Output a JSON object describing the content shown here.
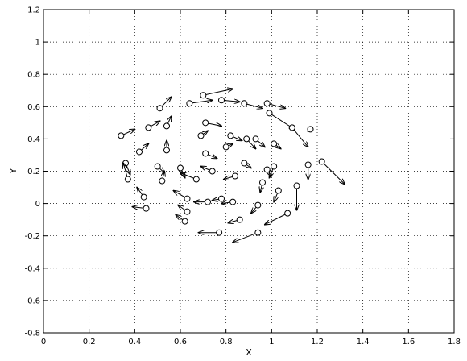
{
  "chart_data": {
    "type": "quiver",
    "xlabel": "X",
    "ylabel": "Y",
    "xlim": [
      0,
      1.8
    ],
    "ylim": [
      -0.8,
      1.2
    ],
    "x_ticks": [
      "0",
      "0.2",
      "0.4",
      "0.6",
      "0.8",
      "1",
      "1.2",
      "1.4",
      "1.6",
      "1.8"
    ],
    "y_ticks": [
      "1.2",
      "1",
      "0.8",
      "0.6",
      "0.4",
      "0.2",
      "0",
      "-0.2",
      "-0.4",
      "-0.6",
      "-0.8"
    ],
    "grid": true,
    "marker": "circle",
    "color": "#000000",
    "points": [
      {
        "x": 0.34,
        "y": 0.42,
        "u": 0.06,
        "v": 0.04
      },
      {
        "x": 0.36,
        "y": 0.25,
        "u": 0.02,
        "v": -0.07
      },
      {
        "x": 0.37,
        "y": 0.15,
        "u": -0.02,
        "v": 0.1
      },
      {
        "x": 0.42,
        "y": 0.32,
        "u": 0.04,
        "v": 0.05
      },
      {
        "x": 0.44,
        "y": 0.04,
        "u": -0.03,
        "v": 0.06
      },
      {
        "x": 0.45,
        "y": -0.03,
        "u": -0.06,
        "v": 0.01
      },
      {
        "x": 0.46,
        "y": 0.47,
        "u": 0.05,
        "v": 0.04
      },
      {
        "x": 0.5,
        "y": 0.23,
        "u": 0.03,
        "v": -0.04
      },
      {
        "x": 0.51,
        "y": 0.59,
        "u": 0.05,
        "v": 0.07
      },
      {
        "x": 0.52,
        "y": 0.14,
        "u": 0.01,
        "v": 0.06
      },
      {
        "x": 0.54,
        "y": 0.48,
        "u": 0.02,
        "v": 0.06
      },
      {
        "x": 0.54,
        "y": 0.33,
        "u": 0.0,
        "v": 0.06
      },
      {
        "x": 0.6,
        "y": 0.22,
        "u": 0.02,
        "v": -0.06
      },
      {
        "x": 0.62,
        "y": -0.11,
        "u": -0.04,
        "v": 0.04
      },
      {
        "x": 0.63,
        "y": -0.05,
        "u": -0.04,
        "v": 0.04
      },
      {
        "x": 0.64,
        "y": 0.62,
        "u": 0.1,
        "v": 0.02
      },
      {
        "x": 0.63,
        "y": 0.03,
        "u": -0.06,
        "v": 0.05
      },
      {
        "x": 0.67,
        "y": 0.15,
        "u": -0.07,
        "v": 0.04
      },
      {
        "x": 0.69,
        "y": 0.42,
        "u": 0.03,
        "v": 0.03
      },
      {
        "x": 0.7,
        "y": 0.67,
        "u": 0.13,
        "v": 0.04
      },
      {
        "x": 0.71,
        "y": 0.5,
        "u": 0.07,
        "v": -0.02
      },
      {
        "x": 0.71,
        "y": 0.31,
        "u": 0.05,
        "v": -0.03
      },
      {
        "x": 0.72,
        "y": 0.01,
        "u": -0.06,
        "v": 0.0
      },
      {
        "x": 0.74,
        "y": 0.2,
        "u": -0.05,
        "v": 0.03
      },
      {
        "x": 0.78,
        "y": 0.64,
        "u": 0.08,
        "v": -0.01
      },
      {
        "x": 0.77,
        "y": -0.18,
        "u": -0.09,
        "v": 0.0
      },
      {
        "x": 0.78,
        "y": 0.03,
        "u": -0.04,
        "v": -0.01
      },
      {
        "x": 0.8,
        "y": 0.35,
        "u": 0.03,
        "v": 0.02
      },
      {
        "x": 0.82,
        "y": 0.42,
        "u": 0.05,
        "v": -0.03
      },
      {
        "x": 0.83,
        "y": 0.01,
        "u": -0.05,
        "v": -0.01
      },
      {
        "x": 0.84,
        "y": 0.17,
        "u": -0.05,
        "v": -0.02
      },
      {
        "x": 0.86,
        "y": -0.1,
        "u": -0.05,
        "v": -0.02
      },
      {
        "x": 0.88,
        "y": 0.62,
        "u": 0.08,
        "v": -0.03
      },
      {
        "x": 0.88,
        "y": 0.25,
        "u": 0.03,
        "v": -0.03
      },
      {
        "x": 0.89,
        "y": 0.4,
        "u": 0.04,
        "v": -0.06
      },
      {
        "x": 0.93,
        "y": 0.4,
        "u": 0.04,
        "v": -0.05
      },
      {
        "x": 0.94,
        "y": -0.18,
        "u": -0.11,
        "v": -0.06
      },
      {
        "x": 0.94,
        "y": -0.01,
        "u": -0.03,
        "v": -0.05
      },
      {
        "x": 0.96,
        "y": 0.13,
        "u": -0.01,
        "v": -0.06
      },
      {
        "x": 0.98,
        "y": 0.21,
        "u": 0.02,
        "v": -0.04
      },
      {
        "x": 0.98,
        "y": 0.62,
        "u": 0.08,
        "v": -0.03
      },
      {
        "x": 0.99,
        "y": 0.56,
        "u": 0.11,
        "v": -0.1
      },
      {
        "x": 1.01,
        "y": 0.23,
        "u": -0.02,
        "v": -0.07
      },
      {
        "x": 1.01,
        "y": 0.37,
        "u": 0.03,
        "v": -0.03
      },
      {
        "x": 1.03,
        "y": 0.08,
        "u": -0.02,
        "v": -0.07
      },
      {
        "x": 1.07,
        "y": -0.06,
        "u": -0.1,
        "v": -0.07
      },
      {
        "x": 1.09,
        "y": 0.47,
        "u": 0.07,
        "v": -0.12
      },
      {
        "x": 1.11,
        "y": 0.11,
        "u": 0.0,
        "v": -0.15
      },
      {
        "x": 1.16,
        "y": 0.24,
        "u": 0.0,
        "v": -0.09
      },
      {
        "x": 1.17,
        "y": 0.46,
        "u": 0.01,
        "v": 0.0
      },
      {
        "x": 1.22,
        "y": 0.26,
        "u": 0.1,
        "v": -0.14
      }
    ]
  }
}
